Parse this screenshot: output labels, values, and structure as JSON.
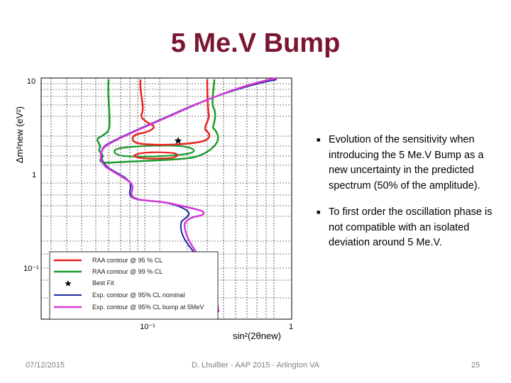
{
  "slide": {
    "title": "5 Me.V Bump",
    "bullets": [
      "Evolution of the sensitivity when introducing the 5 Me.V Bump as a new uncertainty in the predicted spectrum (50% of the amplitude).",
      "To first order the oscillation phase is not compatible with an isolated deviation around 5 Me.V."
    ],
    "footer": {
      "date": "07/12/2015",
      "center": "D. Lhuillier - AAP 2015 - Arlington VA",
      "page": "25"
    }
  },
  "chart_data": {
    "type": "line",
    "ylabel": "Δm²new (eV²)",
    "xlabel": "sin²(2θnew)",
    "x_tick_labels": [
      "10⁻¹",
      "1"
    ],
    "y_tick_labels": [
      "10",
      "1",
      "10⁻¹"
    ],
    "log_x": true,
    "log_y": true,
    "grid": true,
    "legend_position": "bottom-left",
    "legend": [
      {
        "label": "RAA contour @ 95 % CL",
        "color": "#e8231d",
        "style": "line"
      },
      {
        "label": "RAA contour @ 99 % CL",
        "color": "#1c9a2c",
        "style": "line"
      },
      {
        "label": "Best Fit",
        "color": "#000000",
        "style": "star"
      },
      {
        "label": "Exp. contour @ 95% CL nominal",
        "color": "#1b2a9e",
        "style": "line"
      },
      {
        "label": "Exp. contour @ 95% CL bump at 5MeV",
        "color": "#d43ad8",
        "style": "line"
      }
    ],
    "best_fit": {
      "x": 0.14,
      "y": 2.4
    }
  }
}
